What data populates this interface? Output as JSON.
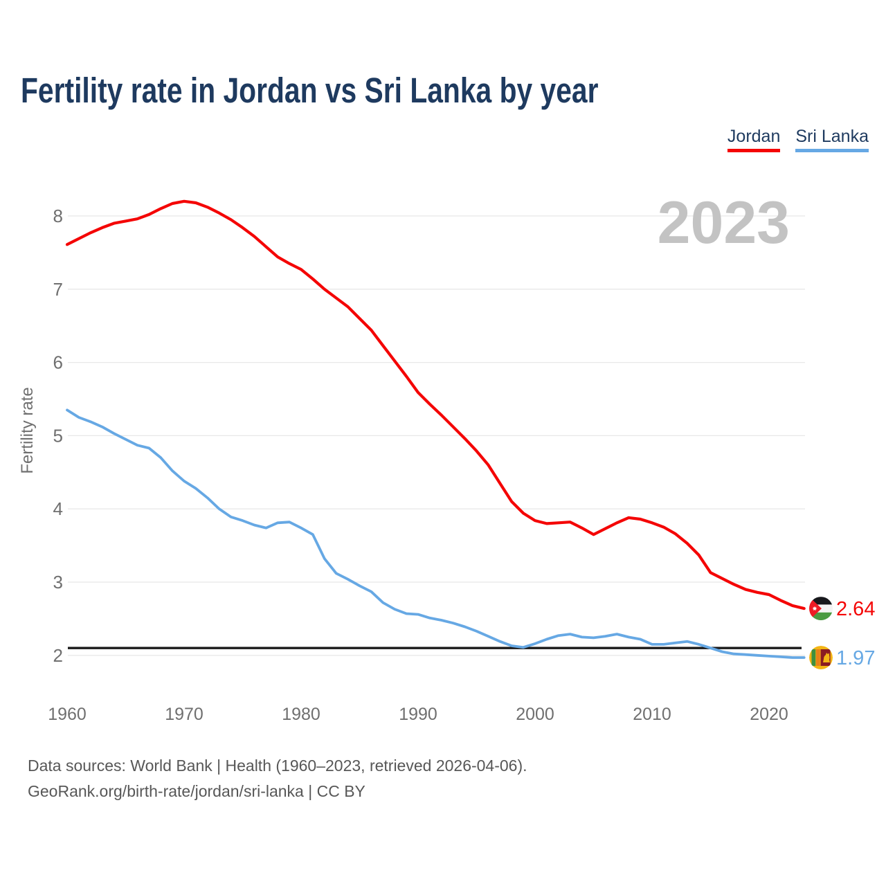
{
  "title": "Fertility rate in Jordan vs Sri Lanka by year",
  "watermark": "2023",
  "y_axis_label": "Fertility rate",
  "legend": {
    "items": [
      {
        "label": "Jordan",
        "color": "#f40505"
      },
      {
        "label": "Sri Lanka",
        "color": "#66a8e4"
      }
    ]
  },
  "end_labels": {
    "jordan": "2.64",
    "sri_lanka": "1.97"
  },
  "footer": {
    "line1": "Data sources: World Bank | Health (1960–2023, retrieved 2026-04-06).",
    "line2": "GeoRank.org/birth-rate/jordan/sri-lanka | CC BY"
  },
  "chart_data": {
    "type": "line",
    "title": "Fertility rate in Jordan vs Sri Lanka by year",
    "xlabel": "",
    "ylabel": "Fertility rate",
    "xlim": [
      1960,
      2023
    ],
    "ylim": [
      1.8,
      8.35
    ],
    "grid": "horizontal",
    "legend_position": "top-right",
    "xticks": [
      1960,
      1970,
      1980,
      1990,
      2000,
      2010,
      2020
    ],
    "yticks": [
      2,
      3,
      4,
      5,
      6,
      7,
      8
    ],
    "reference_line": {
      "value": 2.1,
      "color": "#1a1a1a"
    },
    "x": [
      1960,
      1961,
      1962,
      1963,
      1964,
      1965,
      1966,
      1967,
      1968,
      1969,
      1970,
      1971,
      1972,
      1973,
      1974,
      1975,
      1976,
      1977,
      1978,
      1979,
      1980,
      1981,
      1982,
      1983,
      1984,
      1985,
      1986,
      1987,
      1988,
      1989,
      1990,
      1991,
      1992,
      1993,
      1994,
      1995,
      1996,
      1997,
      1998,
      1999,
      2000,
      2001,
      2002,
      2003,
      2004,
      2005,
      2006,
      2007,
      2008,
      2009,
      2010,
      2011,
      2012,
      2013,
      2014,
      2015,
      2016,
      2017,
      2018,
      2019,
      2020,
      2021,
      2022,
      2023
    ],
    "series": [
      {
        "name": "Jordan",
        "color": "#f40505",
        "end_label": "2.64",
        "values": [
          7.61,
          7.69,
          7.77,
          7.84,
          7.9,
          7.93,
          7.96,
          8.02,
          8.1,
          8.17,
          8.2,
          8.18,
          8.12,
          8.04,
          7.95,
          7.84,
          7.72,
          7.58,
          7.44,
          7.35,
          7.27,
          7.14,
          7.0,
          6.88,
          6.76,
          6.6,
          6.44,
          6.23,
          6.02,
          5.81,
          5.59,
          5.43,
          5.28,
          5.12,
          4.96,
          4.79,
          4.6,
          4.35,
          4.1,
          3.94,
          3.84,
          3.8,
          3.81,
          3.82,
          3.74,
          3.65,
          3.73,
          3.81,
          3.88,
          3.86,
          3.81,
          3.75,
          3.66,
          3.53,
          3.37,
          3.13,
          3.05,
          2.97,
          2.9,
          2.86,
          2.83,
          2.75,
          2.68,
          2.64
        ]
      },
      {
        "name": "Sri Lanka",
        "color": "#66a8e4",
        "end_label": "1.97",
        "values": [
          5.35,
          5.25,
          5.19,
          5.12,
          5.03,
          4.95,
          4.87,
          4.83,
          4.7,
          4.52,
          4.38,
          4.28,
          4.15,
          4.0,
          3.89,
          3.84,
          3.78,
          3.74,
          3.81,
          3.82,
          3.74,
          3.65,
          3.32,
          3.12,
          3.04,
          2.95,
          2.87,
          2.72,
          2.63,
          2.57,
          2.56,
          2.51,
          2.48,
          2.44,
          2.39,
          2.33,
          2.26,
          2.19,
          2.13,
          2.11,
          2.16,
          2.22,
          2.27,
          2.29,
          2.25,
          2.24,
          2.26,
          2.29,
          2.25,
          2.22,
          2.15,
          2.15,
          2.17,
          2.19,
          2.15,
          2.1,
          2.05,
          2.02,
          2.01,
          2.0,
          1.99,
          1.98,
          1.97,
          1.97
        ]
      }
    ]
  }
}
